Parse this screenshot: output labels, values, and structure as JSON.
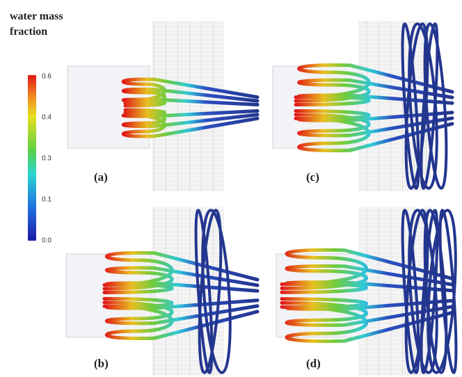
{
  "colorbar": {
    "title_line1": "water mass",
    "title_line2": "fraction",
    "ticks": [
      "0.6",
      "0.4",
      "0.3",
      "0.1",
      "0.0"
    ]
  },
  "panels": [
    {
      "label": "(a)"
    },
    {
      "label": "(b)"
    },
    {
      "label": "(c)"
    },
    {
      "label": "(d)"
    }
  ]
}
